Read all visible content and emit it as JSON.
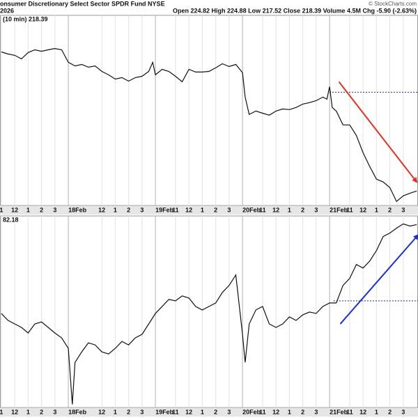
{
  "header": {
    "title": "onsumer Discretionary Select Sector SPDR Fund NYSE",
    "subtitle": "2026",
    "quote": "Open 224.82 High 224.88 Low 217.52 Close 218.39 Volume 4.5M Chg -5.90 (-2.63%)",
    "source": "© StockCharts.com"
  },
  "chart_data": [
    {
      "type": "line",
      "label": "(10 min) 218.39",
      "color": "#111111",
      "x": [
        -5,
        -4.5,
        -4,
        -3.5,
        -3,
        -2.5,
        -2,
        -1.5,
        -1,
        -0.5,
        0,
        0.5,
        1,
        1.5,
        2,
        2.5,
        3,
        3.5,
        4,
        4.5,
        5,
        5.5,
        6,
        6.3,
        6.5,
        7,
        7.5,
        8,
        8.5,
        9,
        9.5,
        10,
        10.5,
        11,
        11.5,
        12,
        12.5,
        13,
        13.2,
        13.5,
        14,
        14.5,
        15,
        15.5,
        16,
        16.5,
        17,
        17.5,
        18,
        18.5,
        19,
        19.3,
        19.5,
        19.7,
        20,
        20.5,
        21,
        21.5,
        22,
        22.5,
        23,
        23.5,
        24,
        24.5,
        25,
        25.5,
        26
      ],
      "values": [
        226.95,
        226.82,
        226.74,
        226.52,
        226.91,
        227.08,
        226.99,
        227.08,
        227.16,
        227.08,
        226.31,
        226.09,
        226.18,
        226.01,
        226.09,
        225.75,
        225.54,
        225.28,
        225.37,
        225.15,
        225.37,
        225.45,
        225.75,
        226.31,
        225.54,
        225.88,
        225.75,
        225.45,
        225.11,
        225.88,
        225.71,
        225.71,
        225.75,
        225.97,
        226.22,
        226.05,
        226.18,
        225.67,
        224.17,
        223.1,
        223.31,
        223.18,
        223.06,
        223.31,
        223.44,
        223.4,
        223.53,
        223.74,
        223.83,
        223.95,
        224.17,
        224.04,
        224.81,
        223.53,
        223.31,
        222.46,
        222.46,
        221.81,
        220.74,
        219.89,
        219.12,
        218.95,
        218.6,
        217.75,
        218.09,
        218.26,
        218.39
      ],
      "xlim": [
        -5.1,
        26.1
      ],
      "ylim": [
        217.5,
        229.2
      ],
      "xticks": [
        {
          "value": -5,
          "label": "1"
        },
        {
          "value": -4,
          "label": "12"
        },
        {
          "value": -3,
          "label": "1"
        },
        {
          "value": -2,
          "label": "2"
        },
        {
          "value": -1,
          "label": "3"
        },
        {
          "value": 0,
          "label": "18Feb"
        },
        {
          "value": 2.5,
          "label": "12"
        },
        {
          "value": 3.5,
          "label": "1"
        },
        {
          "value": 4.5,
          "label": "2"
        },
        {
          "value": 5.5,
          "label": "3"
        },
        {
          "value": 6.5,
          "label": "19Feb"
        },
        {
          "value": 8,
          "label": "11"
        },
        {
          "value": 9,
          "label": "12"
        },
        {
          "value": 10,
          "label": "1"
        },
        {
          "value": 11,
          "label": "2"
        },
        {
          "value": 12,
          "label": "3"
        },
        {
          "value": 13,
          "label": "20Feb"
        },
        {
          "value": 14.5,
          "label": "11"
        },
        {
          "value": 15.5,
          "label": "12"
        },
        {
          "value": 16.5,
          "label": "1"
        },
        {
          "value": 17.5,
          "label": "2"
        },
        {
          "value": 18.5,
          "label": "3"
        },
        {
          "value": 19.5,
          "label": "21Feb"
        },
        {
          "value": 21,
          "label": "11"
        },
        {
          "value": 22,
          "label": "12"
        },
        {
          "value": 23,
          "label": "1"
        },
        {
          "value": 24,
          "label": "2"
        },
        {
          "value": 25,
          "label": "3"
        }
      ],
      "reference_line": {
        "value": 224.47,
        "x_start": 19.5,
        "color": "#1a237e"
      },
      "arrow": {
        "from": [
          20.2,
          225.11
        ],
        "to": [
          26.0,
          218.95
        ],
        "color": "#e53020"
      }
    },
    {
      "type": "line",
      "label": "82.18",
      "color": "#111111",
      "x": [
        -5,
        -4.5,
        -4,
        -3.5,
        -3,
        -2.5,
        -2,
        -1.5,
        -1,
        -0.5,
        0,
        0.3,
        0.5,
        1,
        1.5,
        2,
        2.5,
        3,
        3.5,
        4,
        4.5,
        5,
        5.5,
        6,
        6.5,
        7,
        7.5,
        8,
        8.5,
        9,
        9.5,
        10,
        10.5,
        11,
        11.5,
        12,
        12.5,
        13,
        13.2,
        13.5,
        14,
        14.5,
        15,
        15.5,
        16,
        16.5,
        17,
        17.5,
        18,
        18.5,
        19,
        19.5,
        20,
        20.5,
        21,
        21.5,
        22,
        22.5,
        23,
        23.5,
        24,
        24.5,
        25,
        25.5,
        26
      ],
      "values": [
        75.83,
        75.33,
        75.08,
        74.83,
        74.43,
        75.08,
        75.23,
        74.83,
        74.43,
        74.08,
        73.33,
        69.33,
        72.33,
        73.08,
        73.73,
        73.58,
        73.08,
        72.93,
        73.33,
        73.83,
        73.58,
        74.08,
        74.33,
        75.08,
        75.83,
        76.33,
        76.83,
        76.73,
        77.08,
        76.93,
        76.33,
        76.08,
        76.33,
        76.58,
        77.33,
        77.83,
        78.58,
        74.33,
        72.33,
        75.08,
        76.08,
        76.33,
        75.08,
        74.83,
        75.08,
        75.58,
        75.33,
        75.73,
        75.93,
        75.83,
        76.33,
        76.58,
        76.58,
        77.83,
        78.33,
        79.33,
        79.08,
        79.58,
        80.33,
        81.33,
        81.58,
        81.93,
        82.23,
        82.08,
        82.18
      ],
      "xlim": [
        -5.1,
        26.1
      ],
      "ylim": [
        69.1,
        82.8
      ],
      "xticks": [
        {
          "value": -5,
          "label": "1"
        },
        {
          "value": -4,
          "label": "12"
        },
        {
          "value": -3,
          "label": "1"
        },
        {
          "value": -2,
          "label": "2"
        },
        {
          "value": -1,
          "label": "3"
        },
        {
          "value": 0,
          "label": "18Feb"
        },
        {
          "value": 2.5,
          "label": "12"
        },
        {
          "value": 3.5,
          "label": "1"
        },
        {
          "value": 4.5,
          "label": "2"
        },
        {
          "value": 5.5,
          "label": "3"
        },
        {
          "value": 6.5,
          "label": "19Feb"
        },
        {
          "value": 8,
          "label": "11"
        },
        {
          "value": 9,
          "label": "12"
        },
        {
          "value": 10,
          "label": "1"
        },
        {
          "value": 11,
          "label": "2"
        },
        {
          "value": 12,
          "label": "3"
        },
        {
          "value": 13,
          "label": "20Feb"
        },
        {
          "value": 14.5,
          "label": "11"
        },
        {
          "value": 15.5,
          "label": "12"
        },
        {
          "value": 16.5,
          "label": "1"
        },
        {
          "value": 17.5,
          "label": "2"
        },
        {
          "value": 18.5,
          "label": "3"
        },
        {
          "value": 19.5,
          "label": "21Feb"
        },
        {
          "value": 21,
          "label": "11"
        },
        {
          "value": 22,
          "label": "12"
        },
        {
          "value": 23,
          "label": "1"
        },
        {
          "value": 24,
          "label": "2"
        },
        {
          "value": 25,
          "label": "3"
        }
      ],
      "reference_line": {
        "value": 76.73,
        "x_start": 19.8,
        "color": "#1a237e"
      },
      "arrow": {
        "from": [
          20.3,
          75.08
        ],
        "to": [
          26.1,
          81.43
        ],
        "color": "#1a2fd0"
      }
    }
  ]
}
